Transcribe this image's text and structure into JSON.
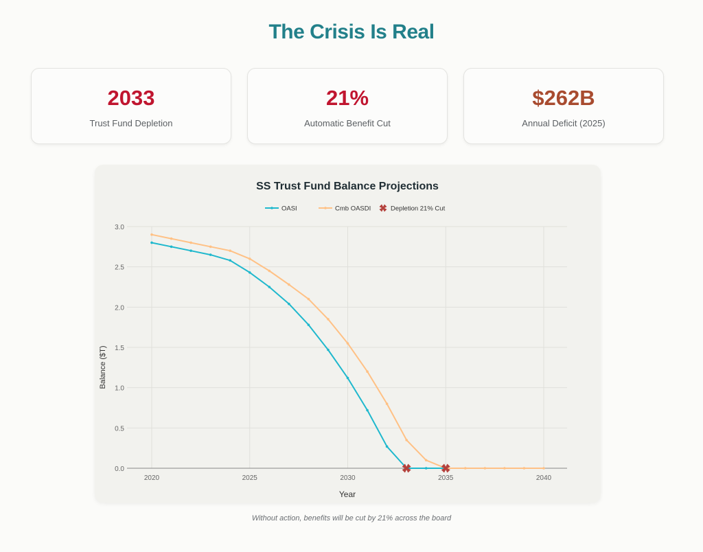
{
  "page": {
    "title": "The Crisis Is Real",
    "caption": "Without action, benefits will be cut by 21% across the board"
  },
  "stats": [
    {
      "value": "2033",
      "label": "Trust Fund Depletion",
      "color": "#c0152f"
    },
    {
      "value": "21%",
      "label": "Automatic Benefit Cut",
      "color": "#c0152f"
    },
    {
      "value": "$262B",
      "label": "Annual Deficit (2025)",
      "color": "#a84b2f"
    }
  ],
  "chart_data": {
    "type": "line",
    "title": "SS Trust Fund Balance Projections",
    "xlabel": "Year",
    "ylabel": "Balance ($T)",
    "xlim": [
      2020,
      2040
    ],
    "ylim": [
      0,
      3.0
    ],
    "x_ticks": [
      2020,
      2025,
      2030,
      2035,
      2040
    ],
    "y_ticks": [
      0.0,
      0.5,
      1.0,
      1.5,
      2.0,
      2.5,
      3.0
    ],
    "y_tick_labels": [
      "0.0",
      "0.5",
      "1.0",
      "1.5",
      "2.0",
      "2.5",
      "3.0"
    ],
    "grid": true,
    "legend_position": "top-center",
    "series": [
      {
        "name": "OASI",
        "color": "#1fb8cd",
        "x": [
          2020,
          2021,
          2022,
          2023,
          2024,
          2025,
          2026,
          2027,
          2028,
          2029,
          2030,
          2031,
          2032,
          2033,
          2034,
          2035
        ],
        "values": [
          2.8,
          2.75,
          2.7,
          2.65,
          2.58,
          2.43,
          2.25,
          2.04,
          1.78,
          1.47,
          1.12,
          0.72,
          0.27,
          0,
          0,
          0
        ]
      },
      {
        "name": "Cmb OASDI",
        "color": "#ffc185",
        "x": [
          2020,
          2021,
          2022,
          2023,
          2024,
          2025,
          2026,
          2027,
          2028,
          2029,
          2030,
          2031,
          2032,
          2033,
          2034,
          2035,
          2036,
          2037,
          2038,
          2039,
          2040
        ],
        "values": [
          2.9,
          2.85,
          2.8,
          2.75,
          2.7,
          2.6,
          2.45,
          2.28,
          2.1,
          1.85,
          1.55,
          1.2,
          0.8,
          0.35,
          0.1,
          0,
          0,
          0,
          0,
          0,
          0
        ]
      },
      {
        "name": "Depletion 21% Cut",
        "color": "#b4413c",
        "marker": "x",
        "x": [
          2033,
          2035
        ],
        "values": [
          0,
          0
        ]
      }
    ]
  }
}
